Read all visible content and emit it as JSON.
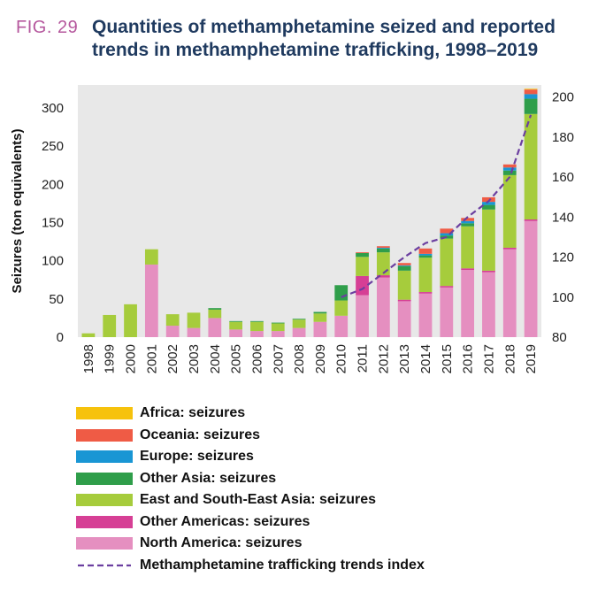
{
  "figure": {
    "label": "FIG. 29",
    "title": "Quantities of methamphetamine seized and reported trends in methamphetamine trafficking, 1998–2019"
  },
  "chart_data": {
    "type": "bar",
    "stacked": true,
    "title": "Quantities of methamphetamine seized and reported trends in methamphetamine trafficking, 1998–2019",
    "ylabel": "Seizures (ton equivalents)",
    "ylim": [
      0,
      330
    ],
    "yticks": [
      0,
      50,
      100,
      150,
      200,
      250,
      300
    ],
    "y2lim": [
      80,
      206
    ],
    "y2ticks": [
      80,
      100,
      120,
      140,
      160,
      180,
      200
    ],
    "categories": [
      "1998",
      "1999",
      "2000",
      "2001",
      "2002",
      "2003",
      "2004",
      "2005",
      "2006",
      "2007",
      "2008",
      "2009",
      "2010",
      "2011",
      "2012",
      "2013",
      "2014",
      "2015",
      "2016",
      "2017",
      "2018",
      "2019"
    ],
    "series": [
      {
        "name": "North America: seizures",
        "color": "#e58fc0",
        "values": [
          0,
          0,
          0,
          95,
          15,
          12,
          25,
          10,
          8,
          8,
          12,
          20,
          28,
          55,
          78,
          47,
          57,
          65,
          88,
          85,
          115,
          152
        ]
      },
      {
        "name": "Other Americas: seizures",
        "color": "#d63f95",
        "values": [
          0,
          0,
          0,
          0,
          0,
          0,
          0,
          0,
          0,
          0,
          0,
          0,
          0,
          25,
          3,
          2,
          2,
          2,
          2,
          2,
          2,
          2
        ]
      },
      {
        "name": "East and South-East Asia: seizures",
        "color": "#a6cc3c",
        "values": [
          5,
          29,
          43,
          20,
          15,
          20,
          11,
          10,
          12,
          10,
          11,
          11,
          20,
          25,
          30,
          38,
          45,
          62,
          55,
          80,
          95,
          138
        ]
      },
      {
        "name": "Other Asia: seizures",
        "color": "#2f9e4a",
        "values": [
          0,
          0,
          0,
          0,
          0,
          0,
          2,
          1,
          1,
          1,
          1,
          2,
          20,
          5,
          5,
          6,
          3,
          4,
          4,
          6,
          6,
          20
        ]
      },
      {
        "name": "Europe: seizures",
        "color": "#1996d4",
        "values": [
          0,
          0,
          0,
          0,
          0,
          0,
          0,
          0,
          0,
          0,
          0,
          0,
          0,
          0,
          1,
          1,
          2,
          3,
          3,
          4,
          4,
          6
        ]
      },
      {
        "name": "Oceania: seizures",
        "color": "#ef5b45",
        "values": [
          0,
          0,
          0,
          0,
          0,
          0,
          0,
          0,
          0,
          0,
          0,
          0,
          0,
          1,
          2,
          3,
          7,
          6,
          4,
          6,
          4,
          6
        ]
      },
      {
        "name": "Africa: seizures",
        "color": "#f6c20c",
        "values": [
          0,
          0,
          0,
          0,
          0,
          0,
          0,
          0,
          0,
          0,
          0,
          0,
          0,
          0,
          0,
          0,
          0,
          0,
          0,
          0,
          0,
          1
        ]
      }
    ],
    "trend": {
      "name": "Methamphetamine trafficking trends index",
      "color": "#6b3fa0",
      "axis": "right",
      "x": [
        "2010",
        "2011",
        "2012",
        "2013",
        "2014",
        "2015",
        "2016",
        "2017",
        "2018",
        "2019"
      ],
      "values": [
        100,
        104,
        112,
        120,
        127,
        130,
        140,
        148,
        160,
        191
      ]
    },
    "legend_order": [
      "Africa: seizures",
      "Oceania: seizures",
      "Europe: seizures",
      "Other Asia: seizures",
      "East and South-East Asia: seizures",
      "Other Americas: seizures",
      "North America: seizures",
      "Methamphetamine trafficking trends index"
    ]
  },
  "legend": {
    "items": [
      {
        "label": "Africa: seizures",
        "color": "#f6c20c"
      },
      {
        "label": "Oceania: seizures",
        "color": "#ef5b45"
      },
      {
        "label": "Europe: seizures",
        "color": "#1996d4"
      },
      {
        "label": "Other Asia: seizures",
        "color": "#2f9e4a"
      },
      {
        "label": "East and South-East Asia: seizures",
        "color": "#a6cc3c"
      },
      {
        "label": "Other Americas: seizures",
        "color": "#d63f95"
      },
      {
        "label": "North America: seizures",
        "color": "#e58fc0"
      }
    ],
    "trend_label": "Methamphetamine trafficking trends index",
    "trend_color": "#6b3fa0"
  },
  "colors": {
    "plot_background": "#e8e8e8",
    "fig_label": "#b5579d",
    "title": "#1f3a5f"
  }
}
